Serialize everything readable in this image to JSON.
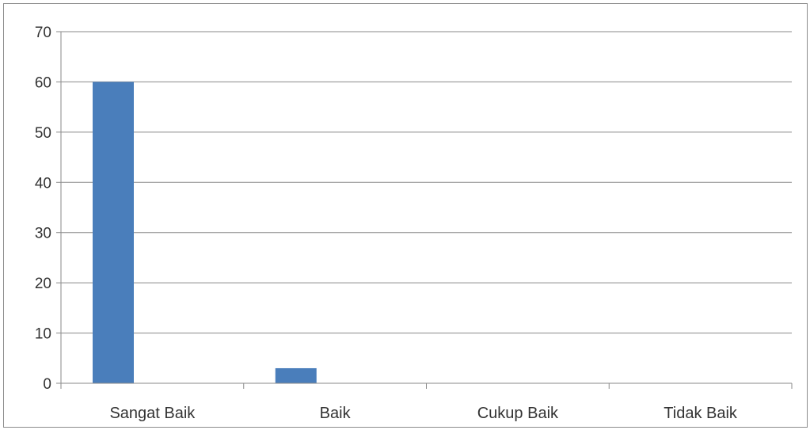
{
  "chart_data": {
    "type": "bar",
    "categories": [
      "Sangat Baik",
      "Baik",
      "Cukup Baik",
      "Tidak Baik"
    ],
    "series": [
      {
        "values": [
          60,
          3,
          0,
          0
        ],
        "color": "#4a7ebb"
      }
    ],
    "ylim": [
      0,
      70
    ],
    "yticks": [
      "0",
      "10",
      "20",
      "30",
      "40",
      "50",
      "60",
      "70"
    ],
    "grid": true,
    "legend": "none"
  }
}
